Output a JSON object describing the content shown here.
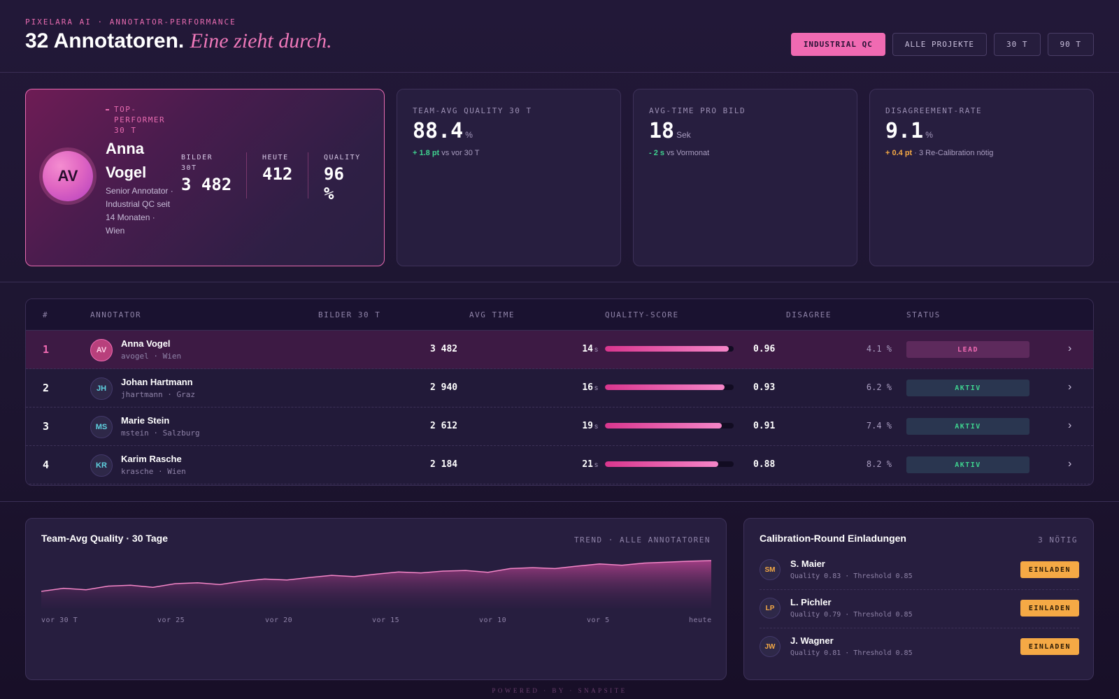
{
  "header": {
    "eyebrow": "PIXELARA AI · ANNOTATOR-PERFORMANCE",
    "title_main": "32 Annotatoren.",
    "title_accent": "Eine zieht durch.",
    "filters": [
      {
        "label": "INDUSTRIAL QC",
        "active": true
      },
      {
        "label": "ALLE PROJEKTE",
        "active": false
      },
      {
        "label": "30 T",
        "active": false
      },
      {
        "label": "90 T",
        "active": false
      }
    ]
  },
  "top_performer": {
    "badge": "TOP-PERFORMER 30 T",
    "initials": "AV",
    "name": "Anna Vogel",
    "description": "Senior Annotator · Industrial QC seit 14 Monaten · Wien",
    "stats": [
      {
        "label": "BILDER 30T",
        "value": "3 482"
      },
      {
        "label": "HEUTE",
        "value": "412"
      },
      {
        "label": "QUALITY",
        "value": "96 %"
      }
    ]
  },
  "kpis": [
    {
      "label": "TEAM-AVG QUALITY 30 T",
      "value": "88.4",
      "unit": "%",
      "delta": "+ 1.8 pt",
      "delta_tone": "positive",
      "note": "vs vor 30 T"
    },
    {
      "label": "AVG-TIME PRO BILD",
      "value": "18",
      "unit": "Sek",
      "delta": "- 2 s",
      "delta_tone": "positive",
      "note": "vs Vormonat"
    },
    {
      "label": "DISAGREEMENT-RATE",
      "value": "9.1",
      "unit": "%",
      "delta": "+ 0.4 pt",
      "delta_tone": "warning",
      "note": "· 3 Re-Calibration nötig"
    }
  ],
  "table": {
    "headers": {
      "rank": "#",
      "annotator": "ANNOTATOR",
      "images": "BILDER 30 T",
      "time": "AVG TIME",
      "quality": "QUALITY-SCORE",
      "disagree": "DISAGREE",
      "status": "STATUS"
    },
    "rows": [
      {
        "rank": "1",
        "initials": "AV",
        "name": "Anna Vogel",
        "handle": "avogel · Wien",
        "images": "3 482",
        "time": "14",
        "time_unit": "s",
        "quality": 0.96,
        "quality_label": "0.96",
        "disagree": "4.1 %",
        "status": "LEAD"
      },
      {
        "rank": "2",
        "initials": "JH",
        "name": "Johan Hartmann",
        "handle": "jhartmann · Graz",
        "images": "2 940",
        "time": "16",
        "time_unit": "s",
        "quality": 0.93,
        "quality_label": "0.93",
        "disagree": "6.2 %",
        "status": "AKTIV"
      },
      {
        "rank": "3",
        "initials": "MS",
        "name": "Marie Stein",
        "handle": "mstein · Salzburg",
        "images": "2 612",
        "time": "19",
        "time_unit": "s",
        "quality": 0.91,
        "quality_label": "0.91",
        "disagree": "7.4 %",
        "status": "AKTIV"
      },
      {
        "rank": "4",
        "initials": "KR",
        "name": "Karim Rasche",
        "handle": "krasche · Wien",
        "images": "2 184",
        "time": "21",
        "time_unit": "s",
        "quality": 0.88,
        "quality_label": "0.88",
        "disagree": "8.2 %",
        "status": "AKTIV"
      }
    ]
  },
  "chart_card": {
    "title": "Team-Avg Quality · 30 Tage",
    "meta": "TREND · ALLE ANNOTATOREN"
  },
  "chart_data": {
    "type": "area",
    "title": "Team-Avg Quality · 30 Tage",
    "x_tick_labels": [
      "vor 30 T",
      "vor 25",
      "vor 20",
      "vor 15",
      "vor 10",
      "vor 5",
      "heute"
    ],
    "x": [
      -30,
      -29,
      -28,
      -27,
      -26,
      -25,
      -24,
      -23,
      -22,
      -21,
      -20,
      -19,
      -18,
      -17,
      -16,
      -15,
      -14,
      -13,
      -12,
      -11,
      -10,
      -9,
      -8,
      -7,
      -6,
      -5,
      -4,
      -3,
      -2,
      -1,
      0
    ],
    "values": [
      0.0,
      0.1,
      0.05,
      0.17,
      0.2,
      0.13,
      0.25,
      0.28,
      0.22,
      0.33,
      0.4,
      0.37,
      0.45,
      0.52,
      0.48,
      0.56,
      0.63,
      0.6,
      0.66,
      0.68,
      0.62,
      0.74,
      0.77,
      0.74,
      0.82,
      0.89,
      0.85,
      0.92,
      0.95,
      0.98,
      1.0
    ],
    "y_axis_labeled": false,
    "grid": false,
    "color": "#f586c8"
  },
  "calibration": {
    "title": "Calibration-Round Einladungen",
    "meta": "3 NÖTIG",
    "items": [
      {
        "initials": "SM",
        "name": "S. Maier",
        "sub": "Quality 0.83 · Threshold 0.85",
        "action": "EINLADEN"
      },
      {
        "initials": "LP",
        "name": "L. Pichler",
        "sub": "Quality 0.79 · Threshold 0.85",
        "action": "EINLADEN"
      },
      {
        "initials": "JW",
        "name": "J. Wagner",
        "sub": "Quality 0.81 · Threshold 0.85",
        "action": "EINLADEN"
      }
    ]
  },
  "footer": "POWERED · BY · SNAPSITE",
  "colors": {
    "accent": "#f06ab2",
    "positive": "#3fd38f",
    "warning": "#f5a945",
    "background": "#1d1530"
  }
}
